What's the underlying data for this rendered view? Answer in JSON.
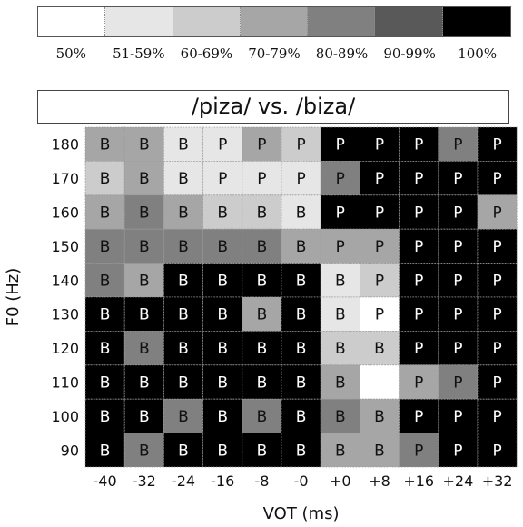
{
  "title": "/piza/ vs. /biza/",
  "legend": [
    {
      "label": "50%",
      "color": "#ffffff"
    },
    {
      "label": "51-59%",
      "color": "#e6e6e6"
    },
    {
      "label": "60-69%",
      "color": "#cccccc"
    },
    {
      "label": "70-79%",
      "color": "#a6a6a6"
    },
    {
      "label": "80-89%",
      "color": "#808080"
    },
    {
      "label": "90-99%",
      "color": "#595959"
    },
    {
      "label": "100%",
      "color": "#000000"
    }
  ],
  "chart_data": {
    "type": "heatmap",
    "title": "/piza/ vs. /biza/",
    "xlabel": "VOT (ms)",
    "ylabel": "F0 (Hz)",
    "x": [
      "-40",
      "-32",
      "-24",
      "-16",
      "-8",
      "-0",
      "+0",
      "+8",
      "+16",
      "+24",
      "+32"
    ],
    "y": [
      "180",
      "170",
      "160",
      "150",
      "140",
      "130",
      "120",
      "110",
      "100",
      "90"
    ],
    "cell_labels": [
      [
        "B",
        "B",
        "B",
        "P",
        "P",
        "P",
        "P",
        "P",
        "P",
        "P",
        "P"
      ],
      [
        "B",
        "B",
        "B",
        "P",
        "P",
        "P",
        "P",
        "P",
        "P",
        "P",
        "P"
      ],
      [
        "B",
        "B",
        "B",
        "B",
        "B",
        "B",
        "P",
        "P",
        "P",
        "P",
        "P"
      ],
      [
        "B",
        "B",
        "B",
        "B",
        "B",
        "B",
        "P",
        "P",
        "P",
        "P",
        "P"
      ],
      [
        "B",
        "B",
        "B",
        "B",
        "B",
        "B",
        "B",
        "P",
        "P",
        "P",
        "P"
      ],
      [
        "B",
        "B",
        "B",
        "B",
        "B",
        "B",
        "B",
        "P",
        "P",
        "P",
        "P"
      ],
      [
        "B",
        "B",
        "B",
        "B",
        "B",
        "B",
        "B",
        "B",
        "P",
        "P",
        "P"
      ],
      [
        "B",
        "B",
        "B",
        "B",
        "B",
        "B",
        "B",
        "",
        "P",
        "P",
        "P"
      ],
      [
        "B",
        "B",
        "B",
        "B",
        "B",
        "B",
        "B",
        "B",
        "P",
        "P",
        "P"
      ],
      [
        "B",
        "B",
        "B",
        "B",
        "B",
        "B",
        "B",
        "B",
        "P",
        "P",
        "P"
      ]
    ],
    "agreement_level": [
      [
        3,
        3,
        1,
        1,
        3,
        2,
        6,
        6,
        6,
        4,
        6
      ],
      [
        2,
        3,
        1,
        1,
        1,
        1,
        4,
        6,
        6,
        6,
        6
      ],
      [
        3,
        4,
        3,
        2,
        2,
        1,
        6,
        6,
        6,
        6,
        3
      ],
      [
        4,
        4,
        4,
        4,
        4,
        3,
        3,
        3,
        6,
        6,
        6
      ],
      [
        4,
        3,
        6,
        6,
        6,
        6,
        1,
        2,
        6,
        6,
        6
      ],
      [
        6,
        6,
        6,
        6,
        3,
        6,
        1,
        0,
        6,
        6,
        6
      ],
      [
        6,
        4,
        6,
        6,
        6,
        6,
        2,
        2,
        6,
        6,
        6
      ],
      [
        6,
        6,
        6,
        6,
        6,
        6,
        3,
        0,
        3,
        4,
        6
      ],
      [
        6,
        6,
        4,
        6,
        4,
        6,
        4,
        3,
        6,
        6,
        6
      ],
      [
        6,
        4,
        6,
        6,
        6,
        6,
        3,
        3,
        4,
        6,
        6
      ]
    ]
  }
}
